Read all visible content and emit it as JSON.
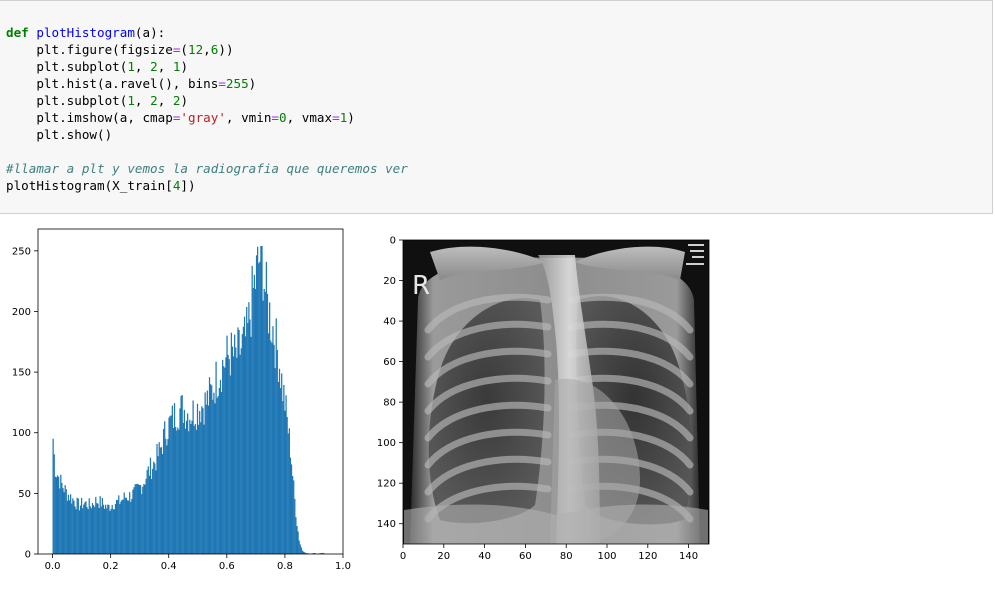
{
  "code_cell": {
    "lines": [
      [
        {
          "t": "kw",
          "v": "def"
        },
        {
          "t": "",
          "v": " "
        },
        {
          "t": "fn",
          "v": "plotHistogram"
        },
        {
          "t": "",
          "v": "(a):"
        }
      ],
      [
        {
          "t": "",
          "v": "    plt.figure(figsize"
        },
        {
          "t": "op",
          "v": "="
        },
        {
          "t": "",
          "v": "("
        },
        {
          "t": "num",
          "v": "12"
        },
        {
          "t": "",
          "v": ","
        },
        {
          "t": "num",
          "v": "6"
        },
        {
          "t": "",
          "v": "))"
        }
      ],
      [
        {
          "t": "",
          "v": "    plt.subplot("
        },
        {
          "t": "num",
          "v": "1"
        },
        {
          "t": "",
          "v": ", "
        },
        {
          "t": "num",
          "v": "2"
        },
        {
          "t": "",
          "v": ", "
        },
        {
          "t": "num",
          "v": "1"
        },
        {
          "t": "",
          "v": ")"
        }
      ],
      [
        {
          "t": "",
          "v": "    plt.hist(a.ravel(), bins"
        },
        {
          "t": "op",
          "v": "="
        },
        {
          "t": "num",
          "v": "255"
        },
        {
          "t": "",
          "v": ")"
        }
      ],
      [
        {
          "t": "",
          "v": "    plt.subplot("
        },
        {
          "t": "num",
          "v": "1"
        },
        {
          "t": "",
          "v": ", "
        },
        {
          "t": "num",
          "v": "2"
        },
        {
          "t": "",
          "v": ", "
        },
        {
          "t": "num",
          "v": "2"
        },
        {
          "t": "",
          "v": ")"
        }
      ],
      [
        {
          "t": "",
          "v": "    plt.imshow(a, cmap"
        },
        {
          "t": "op",
          "v": "="
        },
        {
          "t": "str",
          "v": "'gray'"
        },
        {
          "t": "",
          "v": ", vmin"
        },
        {
          "t": "op",
          "v": "="
        },
        {
          "t": "num",
          "v": "0"
        },
        {
          "t": "",
          "v": ", vmax"
        },
        {
          "t": "op",
          "v": "="
        },
        {
          "t": "num",
          "v": "1"
        },
        {
          "t": "",
          "v": ")"
        }
      ],
      [
        {
          "t": "",
          "v": "    plt.show()"
        }
      ],
      [
        {
          "t": "",
          "v": " "
        }
      ],
      [
        {
          "t": "cm",
          "v": "#llamar a plt y vemos la radiografia que queremos ver"
        }
      ],
      [
        {
          "t": "",
          "v": "plotHistogram(X_train["
        },
        {
          "t": "num",
          "v": "4"
        },
        {
          "t": "",
          "v": "])"
        }
      ]
    ]
  },
  "chart_data": [
    {
      "type": "bar",
      "title": "",
      "xlabel": "",
      "ylabel": "",
      "xlim": [
        -0.05,
        1.0
      ],
      "ylim": [
        0,
        268
      ],
      "xticks": [
        "0.0",
        "0.2",
        "0.4",
        "0.6",
        "0.8",
        "1.0"
      ],
      "yticks": [
        "0",
        "50",
        "100",
        "150",
        "200",
        "250"
      ],
      "grid": false,
      "color": "#1f77b4",
      "bins": 255,
      "anchors": [
        [
          0.0,
          95
        ],
        [
          0.01,
          70
        ],
        [
          0.03,
          58
        ],
        [
          0.05,
          50
        ],
        [
          0.07,
          45
        ],
        [
          0.09,
          40
        ],
        [
          0.11,
          42
        ],
        [
          0.13,
          40
        ],
        [
          0.15,
          44
        ],
        [
          0.17,
          42
        ],
        [
          0.19,
          38
        ],
        [
          0.21,
          42
        ],
        [
          0.23,
          43
        ],
        [
          0.25,
          47
        ],
        [
          0.27,
          48
        ],
        [
          0.29,
          52
        ],
        [
          0.31,
          58
        ],
        [
          0.33,
          68
        ],
        [
          0.35,
          75
        ],
        [
          0.37,
          85
        ],
        [
          0.39,
          102
        ],
        [
          0.41,
          110
        ],
        [
          0.43,
          118
        ],
        [
          0.45,
          120
        ],
        [
          0.47,
          115
        ],
        [
          0.49,
          118
        ],
        [
          0.51,
          122
        ],
        [
          0.53,
          125
        ],
        [
          0.55,
          135
        ],
        [
          0.57,
          148
        ],
        [
          0.59,
          158
        ],
        [
          0.61,
          165
        ],
        [
          0.63,
          162
        ],
        [
          0.65,
          170
        ],
        [
          0.67,
          180
        ],
        [
          0.69,
          215
        ],
        [
          0.71,
          240
        ],
        [
          0.72,
          254
        ],
        [
          0.73,
          222
        ],
        [
          0.74,
          205
        ],
        [
          0.75,
          195
        ],
        [
          0.76,
          185
        ],
        [
          0.77,
          172
        ],
        [
          0.78,
          160
        ],
        [
          0.79,
          140
        ],
        [
          0.8,
          125
        ],
        [
          0.81,
          105
        ],
        [
          0.82,
          85
        ],
        [
          0.83,
          55
        ],
        [
          0.84,
          28
        ],
        [
          0.85,
          10
        ],
        [
          0.86,
          3
        ],
        [
          0.87,
          1
        ],
        [
          0.89,
          0
        ],
        [
          0.9,
          1
        ],
        [
          0.91,
          0
        ],
        [
          0.93,
          1
        ],
        [
          0.94,
          0
        ],
        [
          0.95,
          0
        ],
        [
          1.0,
          0
        ]
      ]
    },
    {
      "type": "image",
      "title": "",
      "cmap": "gray",
      "vmin": 0,
      "vmax": 1,
      "xlim": [
        0,
        150
      ],
      "ylim": [
        150,
        0
      ],
      "xticks": [
        "0",
        "20",
        "40",
        "60",
        "80",
        "100",
        "120",
        "140"
      ],
      "yticks": [
        "0",
        "20",
        "40",
        "60",
        "80",
        "100",
        "120",
        "140"
      ],
      "image_text": "R"
    }
  ]
}
